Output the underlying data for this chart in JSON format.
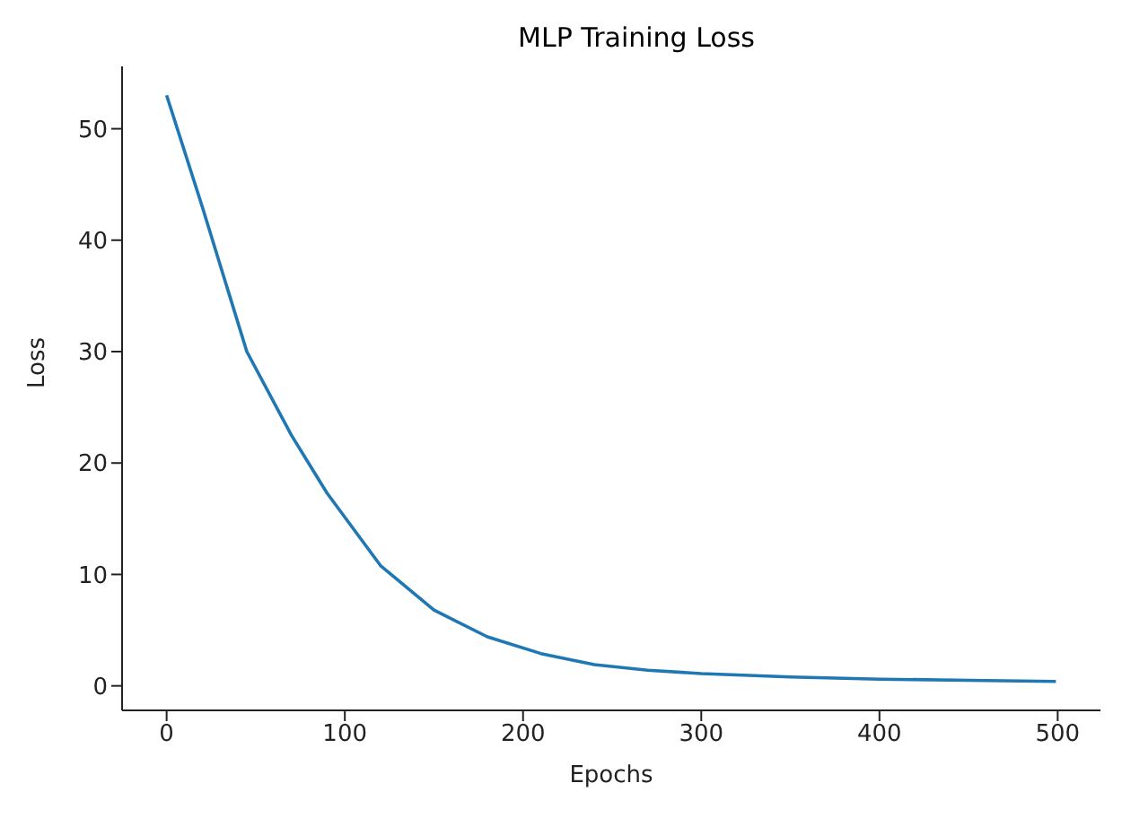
{
  "chart_data": {
    "type": "line",
    "title": "MLP Training Loss",
    "xlabel": "Epochs",
    "ylabel": "Loss",
    "x": [
      0,
      20,
      45,
      70,
      90,
      120,
      150,
      180,
      210,
      240,
      270,
      300,
      350,
      400,
      450,
      499
    ],
    "series": [
      {
        "color": "#1f77b4",
        "values": [
          53,
          43,
          30,
          22.5,
          17.3,
          10.8,
          6.8,
          4.4,
          2.9,
          1.9,
          1.4,
          1.1,
          0.8,
          0.6,
          0.5,
          0.4
        ]
      }
    ],
    "xlim": [
      -25,
      524
    ],
    "xticks": [
      0,
      100,
      200,
      300,
      400,
      500
    ],
    "ylim": [
      -2.2,
      55.6
    ],
    "yticks": [
      0,
      10,
      20,
      30,
      40,
      50
    ],
    "grid": false,
    "legend": false,
    "marker": "none",
    "line_style": "solid"
  }
}
